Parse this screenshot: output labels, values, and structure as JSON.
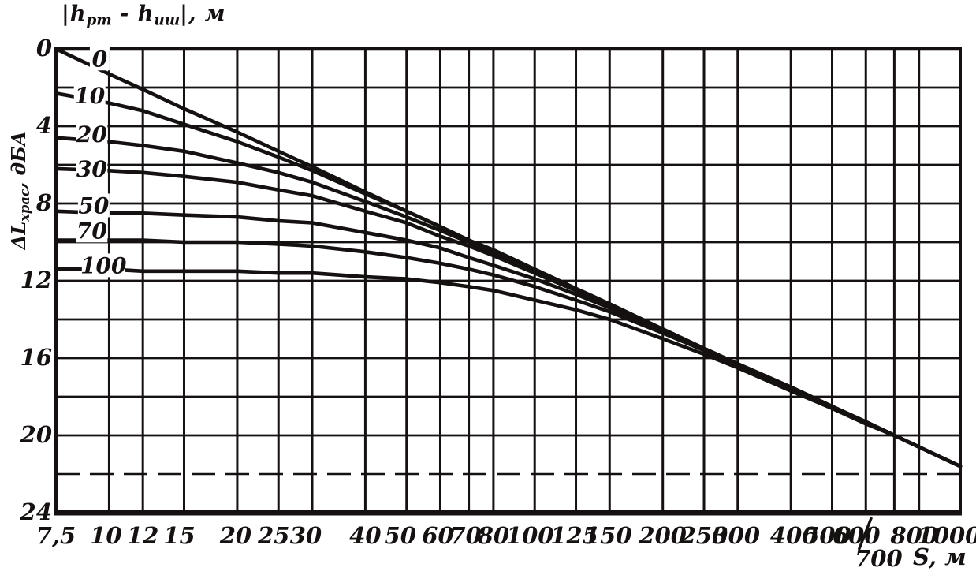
{
  "colors": {
    "ink": "#141110",
    "background": "#ffffff"
  },
  "labels": {
    "title": {
      "open": "|h",
      "sub1": "рт",
      "mid": " - h",
      "sub2": "иш",
      "close": "|, м"
    },
    "y_axis": {
      "main": "ΔL",
      "sub": "храс",
      "unit": ", дБА"
    },
    "x_unit": "S, м"
  },
  "chart_data": {
    "type": "line",
    "title": "|hрт - hиш|, м (curve family parameter: height difference, metres)",
    "xlabel": "S, м",
    "ylabel": "ΔLхрас, дБА",
    "x_scale": "log",
    "x_range": [
      7.5,
      1000
    ],
    "y_range": [
      0,
      24
    ],
    "y_axis_direction": "increases downward",
    "grid": true,
    "y_grid_step_db": 2,
    "dashed_gridline_db": 22,
    "legend_position": "labels at left ends of curves",
    "y_ticks": [
      {
        "v": 0,
        "label": "0"
      },
      {
        "v": 4,
        "label": "4"
      },
      {
        "v": 8,
        "label": "8"
      },
      {
        "v": 12,
        "label": "12"
      },
      {
        "v": 16,
        "label": "16"
      },
      {
        "v": 20,
        "label": "20"
      },
      {
        "v": 24,
        "label": "24"
      }
    ],
    "x_ticks": [
      {
        "v": 7.5,
        "label": "7,5"
      },
      {
        "v": 10,
        "label": "10",
        "dx": -4
      },
      {
        "v": 12,
        "label": "12"
      },
      {
        "v": 15,
        "label": "15",
        "dx": -6
      },
      {
        "v": 20,
        "label": "20",
        "dx": -2
      },
      {
        "v": 25,
        "label": "25",
        "dx": -6
      },
      {
        "v": 30,
        "label": "30",
        "dx": -8
      },
      {
        "v": 40,
        "label": "40"
      },
      {
        "v": 50,
        "label": "50",
        "dx": -8
      },
      {
        "v": 60,
        "label": "60",
        "dx": -3
      },
      {
        "v": 70,
        "label": "70",
        "dx": -4
      },
      {
        "v": 80,
        "label": "80"
      },
      {
        "v": 100,
        "label": "100",
        "dx": -6
      },
      {
        "v": 125,
        "label": "125",
        "dx": -2
      },
      {
        "v": 150,
        "label": "150",
        "dx": -2
      },
      {
        "v": 200,
        "label": "200"
      },
      {
        "v": 250,
        "label": "250"
      },
      {
        "v": 300,
        "label": "300",
        "dx": -2
      },
      {
        "v": 400,
        "label": "400",
        "dx": 4
      },
      {
        "v": 500,
        "label": "500",
        "dx": -6
      },
      {
        "v": 600,
        "label": "600",
        "dx": -12
      },
      {
        "v": 700,
        "label": "700",
        "row": 2,
        "slash": true,
        "dx": -20
      },
      {
        "v": 800,
        "label": "800",
        "dx": -6
      },
      {
        "v": 1000,
        "label": "1000",
        "dx": -14
      }
    ],
    "series": [
      {
        "name": "0",
        "label_pos": [
          9.5,
          0.5
        ],
        "points": [
          [
            7.5,
            0
          ],
          [
            10,
            1.3
          ],
          [
            12,
            2.1
          ],
          [
            15,
            3.1
          ],
          [
            20,
            4.3
          ],
          [
            25,
            5.3
          ],
          [
            30,
            6.1
          ],
          [
            40,
            7.4
          ],
          [
            50,
            8.4
          ],
          [
            60,
            9.2
          ],
          [
            70,
            9.9
          ],
          [
            80,
            10.4
          ],
          [
            100,
            11.4
          ],
          [
            125,
            12.4
          ],
          [
            150,
            13.2
          ],
          [
            200,
            14.5
          ],
          [
            250,
            15.5
          ],
          [
            300,
            16.3
          ],
          [
            400,
            17.5
          ],
          [
            500,
            18.5
          ],
          [
            600,
            19.3
          ],
          [
            700,
            20.0
          ],
          [
            800,
            20.6
          ],
          [
            1000,
            21.6
          ]
        ]
      },
      {
        "name": "10",
        "label_pos": [
          9.0,
          2.4
        ],
        "points": [
          [
            7.5,
            2.3
          ],
          [
            10,
            2.8
          ],
          [
            12,
            3.2
          ],
          [
            15,
            3.9
          ],
          [
            20,
            4.8
          ],
          [
            25,
            5.6
          ],
          [
            30,
            6.3
          ],
          [
            40,
            7.5
          ],
          [
            50,
            8.4
          ],
          [
            60,
            9.2
          ],
          [
            70,
            9.9
          ],
          [
            80,
            10.5
          ],
          [
            100,
            11.4
          ],
          [
            125,
            12.4
          ],
          [
            150,
            13.2
          ],
          [
            200,
            14.5
          ],
          [
            250,
            15.5
          ],
          [
            300,
            16.3
          ],
          [
            400,
            17.5
          ],
          [
            500,
            18.5
          ],
          [
            600,
            19.3
          ],
          [
            700,
            20.0
          ],
          [
            800,
            20.6
          ],
          [
            1000,
            21.6
          ]
        ]
      },
      {
        "name": "20",
        "label_pos": [
          9.1,
          4.4
        ],
        "points": [
          [
            7.5,
            4.6
          ],
          [
            10,
            4.8
          ],
          [
            12,
            5.0
          ],
          [
            15,
            5.3
          ],
          [
            20,
            5.9
          ],
          [
            25,
            6.4
          ],
          [
            30,
            6.9
          ],
          [
            40,
            7.9
          ],
          [
            50,
            8.7
          ],
          [
            60,
            9.4
          ],
          [
            70,
            10.0
          ],
          [
            80,
            10.6
          ],
          [
            100,
            11.5
          ],
          [
            125,
            12.5
          ],
          [
            150,
            13.2
          ],
          [
            200,
            14.5
          ],
          [
            250,
            15.5
          ],
          [
            300,
            16.3
          ],
          [
            400,
            17.5
          ],
          [
            500,
            18.5
          ],
          [
            600,
            19.3
          ],
          [
            700,
            20.0
          ],
          [
            800,
            20.6
          ],
          [
            1000,
            21.6
          ]
        ]
      },
      {
        "name": "30",
        "label_pos": [
          9.1,
          6.2
        ],
        "points": [
          [
            7.5,
            6.2
          ],
          [
            10,
            6.3
          ],
          [
            12,
            6.4
          ],
          [
            15,
            6.6
          ],
          [
            20,
            6.9
          ],
          [
            25,
            7.3
          ],
          [
            30,
            7.6
          ],
          [
            40,
            8.4
          ],
          [
            50,
            9.0
          ],
          [
            60,
            9.7
          ],
          [
            70,
            10.2
          ],
          [
            80,
            10.7
          ],
          [
            100,
            11.6
          ],
          [
            125,
            12.5
          ],
          [
            150,
            13.3
          ],
          [
            200,
            14.5
          ],
          [
            250,
            15.5
          ],
          [
            300,
            16.3
          ],
          [
            400,
            17.5
          ],
          [
            500,
            18.5
          ],
          [
            600,
            19.3
          ],
          [
            700,
            20.0
          ],
          [
            800,
            20.6
          ],
          [
            1000,
            21.6
          ]
        ]
      },
      {
        "name": "50",
        "label_pos": [
          9.2,
          8.1
        ],
        "points": [
          [
            7.5,
            8.4
          ],
          [
            10,
            8.5
          ],
          [
            12,
            8.5
          ],
          [
            15,
            8.6
          ],
          [
            20,
            8.7
          ],
          [
            25,
            8.9
          ],
          [
            30,
            9.0
          ],
          [
            40,
            9.5
          ],
          [
            50,
            9.9
          ],
          [
            60,
            10.3
          ],
          [
            70,
            10.8
          ],
          [
            80,
            11.2
          ],
          [
            100,
            11.9
          ],
          [
            125,
            12.7
          ],
          [
            150,
            13.4
          ],
          [
            200,
            14.6
          ],
          [
            250,
            15.5
          ],
          [
            300,
            16.3
          ],
          [
            400,
            17.6
          ],
          [
            500,
            18.5
          ],
          [
            600,
            19.3
          ],
          [
            700,
            20.0
          ],
          [
            800,
            20.6
          ],
          [
            1000,
            21.6
          ]
        ]
      },
      {
        "name": "70",
        "label_pos": [
          9.1,
          9.4
        ],
        "points": [
          [
            7.5,
            9.9
          ],
          [
            10,
            9.9
          ],
          [
            12,
            9.9
          ],
          [
            15,
            10.0
          ],
          [
            20,
            10.0
          ],
          [
            25,
            10.1
          ],
          [
            30,
            10.2
          ],
          [
            40,
            10.5
          ],
          [
            50,
            10.8
          ],
          [
            60,
            11.1
          ],
          [
            70,
            11.4
          ],
          [
            80,
            11.7
          ],
          [
            100,
            12.3
          ],
          [
            125,
            13.0
          ],
          [
            150,
            13.6
          ],
          [
            200,
            14.7
          ],
          [
            250,
            15.6
          ],
          [
            300,
            16.4
          ],
          [
            400,
            17.6
          ],
          [
            500,
            18.6
          ],
          [
            600,
            19.4
          ],
          [
            700,
            20.0
          ],
          [
            800,
            20.6
          ],
          [
            1000,
            21.6
          ]
        ]
      },
      {
        "name": "100",
        "label_pos": [
          9.7,
          11.2
        ],
        "points": [
          [
            7.5,
            11.4
          ],
          [
            10,
            11.4
          ],
          [
            12,
            11.5
          ],
          [
            15,
            11.5
          ],
          [
            20,
            11.5
          ],
          [
            25,
            11.6
          ],
          [
            30,
            11.6
          ],
          [
            40,
            11.8
          ],
          [
            50,
            11.9
          ],
          [
            60,
            12.1
          ],
          [
            70,
            12.3
          ],
          [
            80,
            12.5
          ],
          [
            100,
            13.0
          ],
          [
            125,
            13.5
          ],
          [
            150,
            14.0
          ],
          [
            200,
            15.0
          ],
          [
            250,
            15.8
          ],
          [
            300,
            16.5
          ],
          [
            400,
            17.7
          ],
          [
            500,
            18.6
          ],
          [
            600,
            19.4
          ],
          [
            700,
            20.0
          ],
          [
            800,
            20.6
          ],
          [
            1000,
            21.6
          ]
        ]
      }
    ]
  }
}
